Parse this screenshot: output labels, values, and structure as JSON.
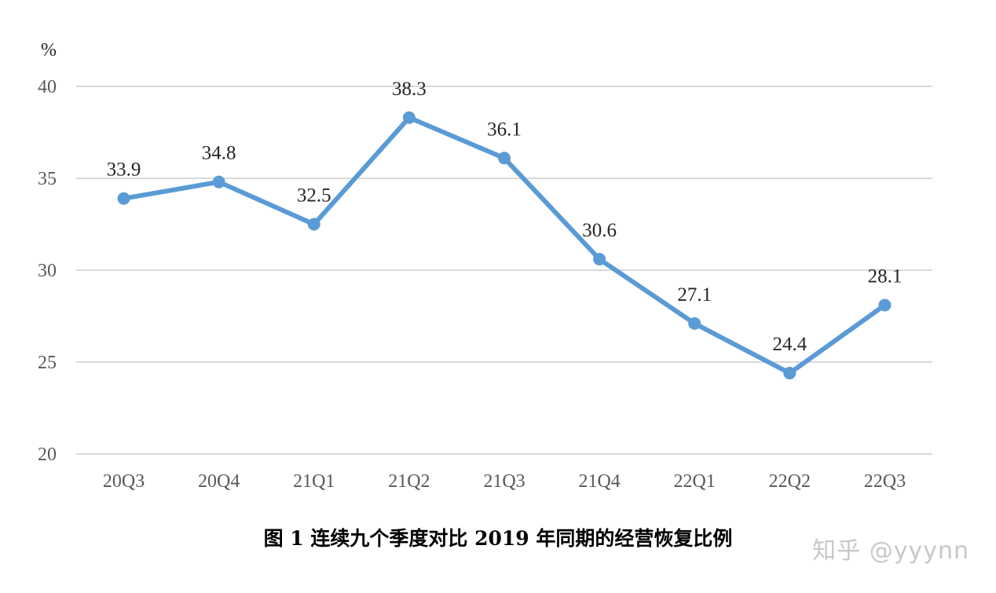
{
  "chart_data": {
    "type": "line",
    "title": "图 1 连续九个季度对比 2019 年同期的经营恢复比例",
    "ylabel": "%",
    "xlabel": "",
    "categories": [
      "20Q3",
      "20Q4",
      "21Q1",
      "21Q2",
      "21Q3",
      "21Q4",
      "22Q1",
      "22Q2",
      "22Q3"
    ],
    "series": [
      {
        "name": "经营恢复比例",
        "values": [
          33.9,
          34.8,
          32.5,
          38.3,
          36.1,
          30.6,
          27.1,
          24.4,
          28.1
        ],
        "color": "#5b9bd5"
      }
    ],
    "ylim": [
      20,
      40
    ],
    "yticks": [
      20,
      25,
      30,
      35,
      40
    ],
    "grid": true,
    "data_labels": [
      "33.9",
      "34.8",
      "32.5",
      "38.3",
      "36.1",
      "30.6",
      "27.1",
      "24.4",
      "28.1"
    ]
  },
  "caption": "图  1  连续九个季度对比 2019 年同期的经营恢复比例",
  "watermark": "知乎 @yyynn",
  "colors": {
    "line": "#5b9bd5",
    "grid": "#d9d9d9",
    "tick": "#595959"
  }
}
